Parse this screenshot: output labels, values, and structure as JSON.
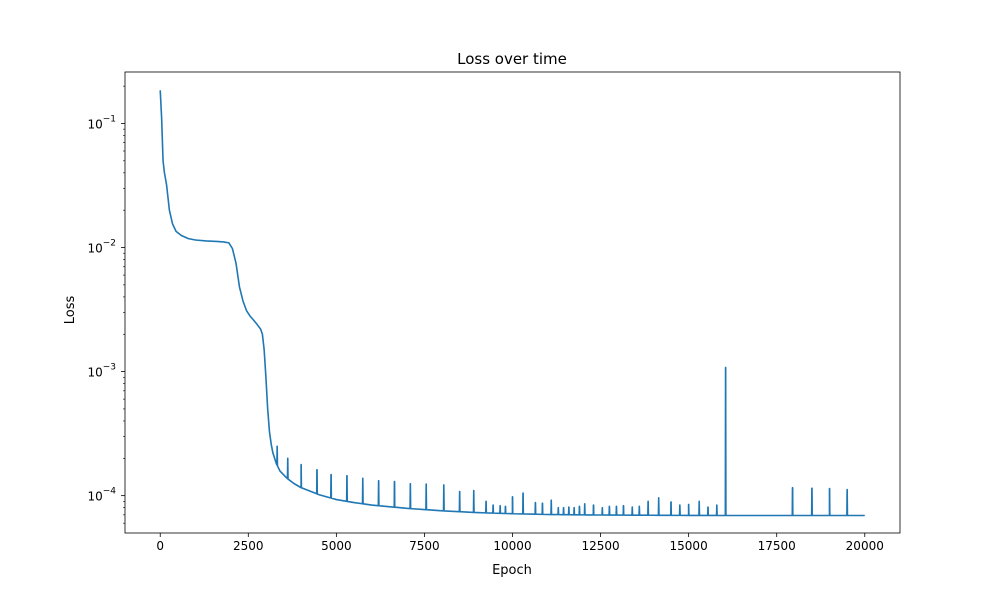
{
  "chart_data": {
    "type": "line",
    "title": "Loss over time",
    "xlabel": "Epoch",
    "ylabel": "Loss",
    "xscale": "linear",
    "yscale": "log",
    "xlim": [
      -1000,
      21000
    ],
    "ylim": [
      5e-05,
      0.26
    ],
    "grid": false,
    "x_ticks": [
      {
        "value": 0,
        "label": "0"
      },
      {
        "value": 2500,
        "label": "2500"
      },
      {
        "value": 5000,
        "label": "5000"
      },
      {
        "value": 7500,
        "label": "7500"
      },
      {
        "value": 10000,
        "label": "10000"
      },
      {
        "value": 12500,
        "label": "12500"
      },
      {
        "value": 15000,
        "label": "15000"
      },
      {
        "value": 17500,
        "label": "17500"
      },
      {
        "value": 20000,
        "label": "20000"
      }
    ],
    "y_ticks": [
      {
        "value": 0.1,
        "base": "10",
        "exp": "−1"
      },
      {
        "value": 0.01,
        "base": "10",
        "exp": "−2"
      },
      {
        "value": 0.001,
        "base": "10",
        "exp": "−3"
      },
      {
        "value": 0.0001,
        "base": "10",
        "exp": "−4"
      }
    ],
    "series": [
      {
        "color": "#1f77b4",
        "x": [
          0,
          40,
          80,
          120,
          180,
          260,
          350,
          450,
          600,
          800,
          1000,
          1300,
          1600,
          1800,
          1950,
          2050,
          2150,
          2250,
          2350,
          2450,
          2550,
          2650,
          2750,
          2850,
          2900,
          2950,
          3000,
          3050,
          3100,
          3150,
          3200,
          3300,
          3400,
          3600,
          3800,
          4000,
          4500,
          5000,
          5500,
          6000,
          7000,
          8000,
          9000,
          10000,
          11000,
          12000,
          13000,
          14000,
          15000,
          16000,
          16060,
          16100,
          17000,
          18000,
          19000,
          20000
        ],
        "y": [
          0.185,
          0.11,
          0.05,
          0.04,
          0.032,
          0.02,
          0.0155,
          0.0135,
          0.0125,
          0.0118,
          0.0115,
          0.0113,
          0.0112,
          0.0111,
          0.0109,
          0.0098,
          0.0075,
          0.0048,
          0.0037,
          0.0031,
          0.0028,
          0.0026,
          0.0024,
          0.0022,
          0.002,
          0.0015,
          0.0009,
          0.0005,
          0.00033,
          0.00026,
          0.00022,
          0.00018,
          0.000158,
          0.000138,
          0.000125,
          0.000116,
          0.000102,
          9.3e-05,
          8.8e-05,
          8.4e-05,
          7.9e-05,
          7.55e-05,
          7.3e-05,
          7.15e-05,
          7.05e-05,
          7e-05,
          6.97e-05,
          6.95e-05,
          6.93e-05,
          6.92e-05,
          6.92e-05,
          6.92e-05,
          6.92e-05,
          6.92e-05,
          6.92e-05,
          6.92e-05
        ]
      }
    ],
    "spikes": [
      {
        "x": 3320,
        "y": 0.00025
      },
      {
        "x": 3620,
        "y": 0.0002
      },
      {
        "x": 4000,
        "y": 0.000178
      },
      {
        "x": 4450,
        "y": 0.000162
      },
      {
        "x": 4850,
        "y": 0.000148
      },
      {
        "x": 5300,
        "y": 0.000145
      },
      {
        "x": 5750,
        "y": 0.000138
      },
      {
        "x": 6200,
        "y": 0.000132
      },
      {
        "x": 6650,
        "y": 0.00013
      },
      {
        "x": 7100,
        "y": 0.000125
      },
      {
        "x": 7550,
        "y": 0.000124
      },
      {
        "x": 8050,
        "y": 0.000122
      },
      {
        "x": 8500,
        "y": 0.000108
      },
      {
        "x": 8900,
        "y": 0.00011
      },
      {
        "x": 9250,
        "y": 9e-05
      },
      {
        "x": 9450,
        "y": 8.4e-05
      },
      {
        "x": 9650,
        "y": 8.3e-05
      },
      {
        "x": 9800,
        "y": 8.2e-05
      },
      {
        "x": 10000,
        "y": 9.8e-05
      },
      {
        "x": 10300,
        "y": 0.000105
      },
      {
        "x": 10650,
        "y": 8.8e-05
      },
      {
        "x": 10850,
        "y": 8.7e-05
      },
      {
        "x": 11100,
        "y": 9.2e-05
      },
      {
        "x": 11300,
        "y": 8e-05
      },
      {
        "x": 11450,
        "y": 8e-05
      },
      {
        "x": 11600,
        "y": 8.1e-05
      },
      {
        "x": 11750,
        "y": 8e-05
      },
      {
        "x": 11900,
        "y": 8.2e-05
      },
      {
        "x": 12050,
        "y": 8.6e-05
      },
      {
        "x": 12300,
        "y": 8.4e-05
      },
      {
        "x": 12550,
        "y": 8e-05
      },
      {
        "x": 12750,
        "y": 8.2e-05
      },
      {
        "x": 12950,
        "y": 8.2e-05
      },
      {
        "x": 13150,
        "y": 8.3e-05
      },
      {
        "x": 13400,
        "y": 8.1e-05
      },
      {
        "x": 13600,
        "y": 8.2e-05
      },
      {
        "x": 13850,
        "y": 9e-05
      },
      {
        "x": 14150,
        "y": 9.6e-05
      },
      {
        "x": 14500,
        "y": 8.9e-05
      },
      {
        "x": 14750,
        "y": 8.4e-05
      },
      {
        "x": 15000,
        "y": 8.5e-05
      },
      {
        "x": 15300,
        "y": 9e-05
      },
      {
        "x": 15550,
        "y": 8.1e-05
      },
      {
        "x": 15800,
        "y": 8.4e-05
      },
      {
        "x": 16050,
        "y": 0.00108
      },
      {
        "x": 17950,
        "y": 0.000116
      },
      {
        "x": 18500,
        "y": 0.000115
      },
      {
        "x": 19000,
        "y": 0.000114
      },
      {
        "x": 19500,
        "y": 0.000112
      }
    ]
  }
}
